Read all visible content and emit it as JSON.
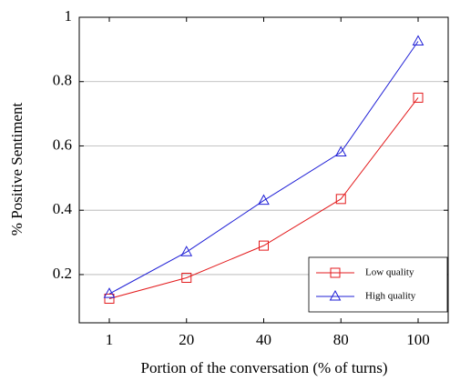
{
  "chart_data": {
    "type": "line",
    "xlabel": "Portion of the conversation (% of turns)",
    "ylabel": "% Positive Sentiment",
    "categories": [
      "1",
      "20",
      "40",
      "80",
      "100"
    ],
    "series": [
      {
        "name": "Low quality",
        "color": "#e31a1c",
        "marker": "square",
        "values": [
          0.125,
          0.19,
          0.29,
          0.435,
          0.75
        ]
      },
      {
        "name": "High quality",
        "color": "#1f1fd6",
        "marker": "triangle",
        "values": [
          0.14,
          0.27,
          0.43,
          0.58,
          0.925
        ]
      }
    ],
    "ylim": [
      0.05,
      1
    ],
    "yticks": [
      0.2,
      0.4,
      0.6,
      0.8,
      1
    ],
    "grid": true,
    "legend": "lower right"
  }
}
